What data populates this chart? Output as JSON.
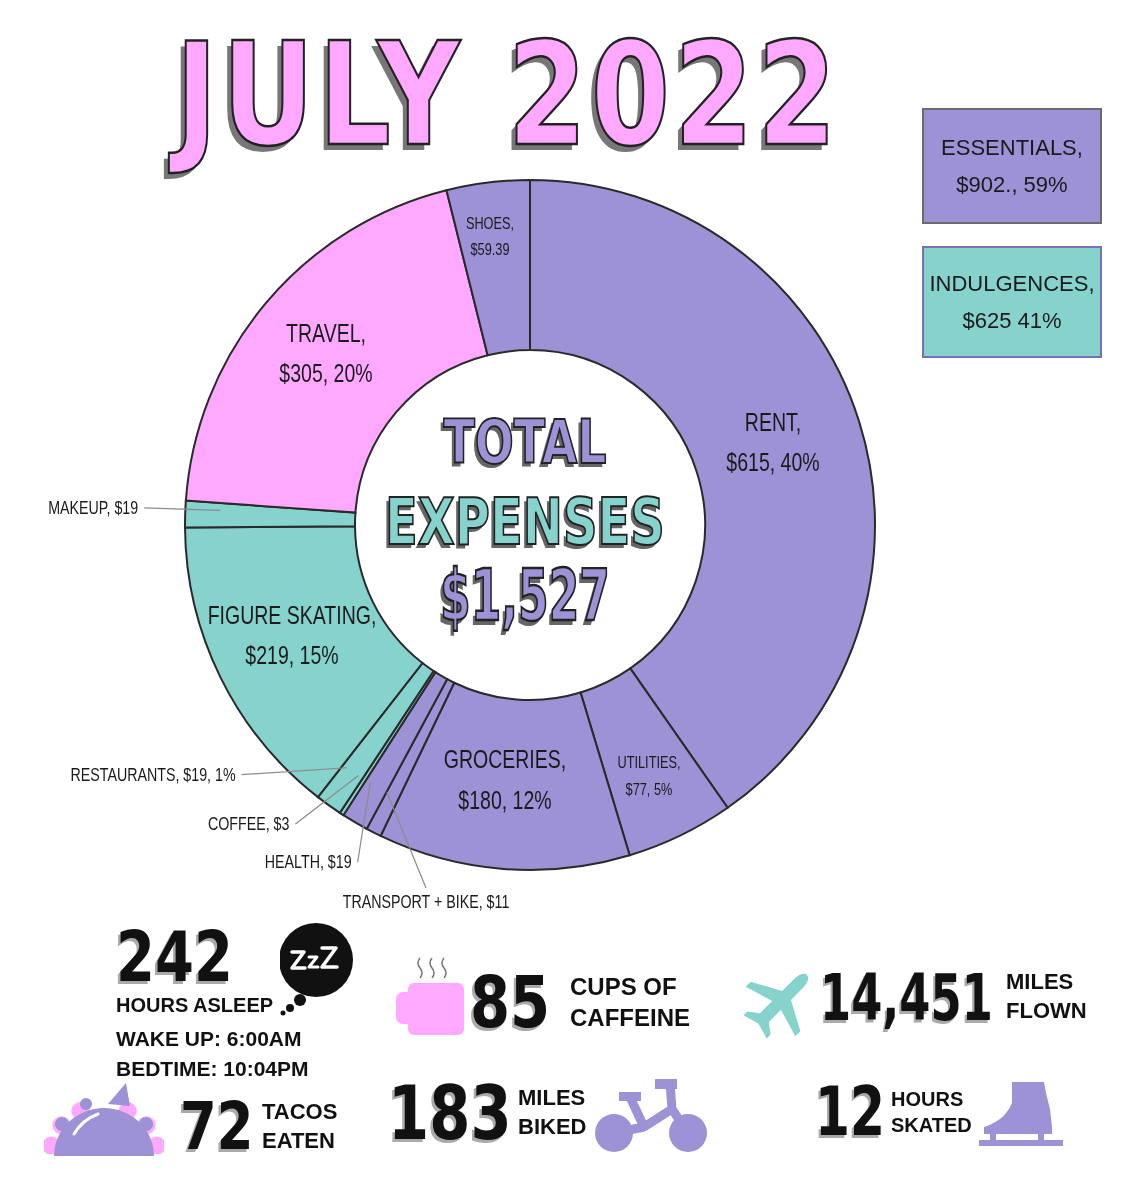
{
  "chart_data": [
    {
      "type": "donut",
      "title": "JULY 2022",
      "categories": [
        null,
        null,
        null,
        null,
        null,
        null,
        null,
        null,
        null,
        null,
        null
      ],
      "values": [
        615,
        77,
        180,
        11,
        19,
        3,
        19,
        219,
        19,
        305,
        59.39
      ],
      "colors": [
        "#9d92d6",
        "#9d92d6",
        "#9d92d6",
        "#9d92d6",
        "#9d92d6",
        "#86d2cc",
        "#86d2cc",
        "#86d2cc",
        "#86d2cc",
        "#ffa8ff",
        "#9d92d6"
      ],
      "value_labels": [
        "RENT, $615, 40%",
        "UTILITIES, $77, 5%",
        "GROCERIES, $180, 12%",
        "TRANSPORT + BIKE, $11",
        "HEALTH, $19",
        "COFFEE, $3",
        "RESTAURANTS, $19, 1%",
        "FIGURE SKATING, $219, 15%",
        "MAKEUP, $19",
        "TRAVEL, $305, 20%",
        "SHOES, $59.39"
      ],
      "annotations": [
        "TOTAL",
        "EXPENSES",
        "$1,527",
        "ESSENTIALS, $902., 59%",
        "INDULGENCES, $625 41%"
      ]
    },
    {
      "type": "other",
      "annotations": [
        "242",
        "HOURS ASLEEP",
        "WAKE UP: 6:00AM",
        "BEDTIME: 10:04PM",
        "85",
        "CUPS OF CAFFEINE",
        "14,451",
        "MILES FLOWN",
        "72",
        "TACOS EATEN",
        "183",
        "MILES BIKED",
        "12",
        "HOURS SKATED"
      ]
    }
  ]
}
